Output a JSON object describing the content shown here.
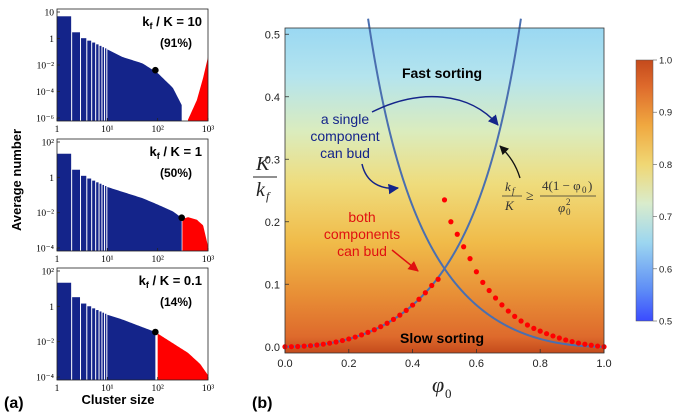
{
  "labels": {
    "panel_a": "(a)",
    "panel_b": "(b)",
    "ylabel_a": "Average number",
    "xlabel_a": "Cluster size"
  },
  "chart_data": [
    {
      "type": "bar",
      "panel": "(a) top",
      "annotation_ratio": "k",
      "annotation_sub": "f",
      "annotation_rest": " / K = 10",
      "annotation_pct": "(91%)",
      "xscale": "log",
      "yscale": "log",
      "xlim": [
        1,
        1000
      ],
      "ylim": [
        1e-06,
        10
      ],
      "yticks": [
        "10",
        "1",
        "10⁻²",
        "10⁻⁴",
        "10⁻⁶"
      ],
      "xticks": [
        "1",
        "10¹",
        "10²",
        "10³"
      ],
      "series": [
        {
          "name": "",
          "color": "#14248a",
          "points": [
            [
              1,
              3.5
            ],
            [
              2,
              0.35
            ],
            [
              3,
              0.15
            ],
            [
              5,
              0.08
            ],
            [
              10,
              0.03
            ],
            [
              20,
              0.01
            ],
            [
              50,
              0.004
            ],
            [
              100,
              0.001
            ],
            [
              200,
              0.00012
            ],
            [
              300,
              1e-05
            ]
          ]
        },
        {
          "name": "",
          "color": "#ff0000",
          "points": [
            [
              400,
              1.2e-06
            ],
            [
              600,
              2e-05
            ],
            [
              800,
              0.0005
            ],
            [
              1000,
              0.01
            ]
          ]
        }
      ],
      "marker": {
        "x": 90,
        "y": 0.0015
      }
    },
    {
      "type": "bar",
      "panel": "(a) middle",
      "annotation_ratio": "k",
      "annotation_sub": "f",
      "annotation_rest": " / K = 1",
      "annotation_pct": "(50%)",
      "xscale": "log",
      "yscale": "log",
      "xlim": [
        1,
        1000
      ],
      "ylim": [
        1e-05,
        100
      ],
      "yticks": [
        "10²",
        "1",
        "10⁻²",
        "10⁻⁴"
      ],
      "xticks": [
        "1",
        "10¹",
        "10²",
        "10³"
      ],
      "series": [
        {
          "name": "",
          "color": "#14248a",
          "points": [
            [
              1,
              12
            ],
            [
              2,
              1.2
            ],
            [
              3,
              0.5
            ],
            [
              5,
              0.25
            ],
            [
              10,
              0.1
            ],
            [
              20,
              0.05
            ],
            [
              50,
              0.02
            ],
            [
              100,
              0.008
            ],
            [
              200,
              0.003
            ],
            [
              300,
              0.0012
            ]
          ]
        },
        {
          "name": "",
          "color": "#ff0000",
          "points": [
            [
              310,
              0.001
            ],
            [
              400,
              0.0013
            ],
            [
              600,
              0.0009
            ],
            [
              800,
              0.0004
            ],
            [
              1000,
              2e-05
            ]
          ]
        }
      ],
      "marker": {
        "x": 300,
        "y": 0.0012
      }
    },
    {
      "type": "bar",
      "panel": "(a) bottom",
      "annotation_ratio": "k",
      "annotation_sub": "f",
      "annotation_rest": " / K = 0.1",
      "annotation_pct": "(14%)",
      "xscale": "log",
      "yscale": "log",
      "xlim": [
        1,
        1000
      ],
      "ylim": [
        1e-05,
        100
      ],
      "yticks": [
        "10²",
        "1",
        "10⁻²",
        "10⁻⁴"
      ],
      "xticks": [
        "1",
        "10¹",
        "10²",
        "10³"
      ],
      "series": [
        {
          "name": "",
          "color": "#14248a",
          "points": [
            [
              1,
              12
            ],
            [
              2,
              1.5
            ],
            [
              3,
              0.6
            ],
            [
              5,
              0.3
            ],
            [
              10,
              0.12
            ],
            [
              20,
              0.06
            ],
            [
              50,
              0.02
            ],
            [
              90,
              0.01
            ]
          ]
        },
        {
          "name": "",
          "color": "#ff0000",
          "points": [
            [
              100,
              0.008
            ],
            [
              200,
              0.002
            ],
            [
              400,
              0.0005
            ],
            [
              700,
              0.0001
            ],
            [
              1000,
              2e-05
            ]
          ]
        }
      ],
      "marker": {
        "x": 90,
        "y": 0.01
      }
    },
    {
      "type": "line",
      "panel": "(b)",
      "xlabel": "φ",
      "xlabel_sub": "0",
      "ylabel_num": "K",
      "ylabel_den": "k",
      "ylabel_den_sub": "f",
      "xlim": [
        0.0,
        1.0
      ],
      "ylim": [
        -0.01,
        0.51
      ],
      "xticks": [
        "0.0",
        "0.2",
        "0.4",
        "0.6",
        "0.8",
        "1.0"
      ],
      "yticks": [
        "0.0",
        "0.1",
        "0.2",
        "0.3",
        "0.4",
        "0.5"
      ],
      "region_labels": {
        "fast": "Fast sorting",
        "slow": "Slow sorting",
        "single_line1": "a single",
        "single_line2": "component",
        "single_line3": "can bud",
        "both_line1": "both",
        "both_line2": "components",
        "both_line3": "can bud"
      },
      "inequality": {
        "lhs_num": "k",
        "lhs_num_sub": "f",
        "lhs_den": "K",
        "op": "≥",
        "rhs_num": "4(1 − φ",
        "rhs_num_sub": "0",
        "rhs_num_end": ")",
        "rhs_den": "φ",
        "rhs_den_sub": "0",
        "rhs_den_sup": "2"
      },
      "curves": [
        {
          "name": "",
          "color": "#4a6fb0",
          "formula": "phi^2/(4(1-phi))"
        },
        {
          "name": "",
          "color": "#4a6fb0",
          "formula": "(1-phi)^2/(4 phi)"
        }
      ],
      "dots": {
        "color": "#ff0000",
        "x": [
          0.0,
          0.02,
          0.04,
          0.06,
          0.08,
          0.1,
          0.12,
          0.14,
          0.16,
          0.18,
          0.2,
          0.22,
          0.24,
          0.26,
          0.28,
          0.3,
          0.32,
          0.34,
          0.36,
          0.38,
          0.4,
          0.42,
          0.44,
          0.46,
          0.48,
          0.5,
          0.52,
          0.54,
          0.56,
          0.58,
          0.6,
          0.62,
          0.64,
          0.66,
          0.68,
          0.7,
          0.72,
          0.74,
          0.76,
          0.78,
          0.8,
          0.82,
          0.84,
          0.86,
          0.88,
          0.9,
          0.92,
          0.94,
          0.96,
          0.98,
          1.0
        ],
        "y": [
          0.0,
          0.0001,
          0.0004,
          0.001,
          0.0017,
          0.0028,
          0.0041,
          0.0057,
          0.0076,
          0.0099,
          0.0125,
          0.0155,
          0.019,
          0.023,
          0.0272,
          0.0321,
          0.0376,
          0.0438,
          0.0506,
          0.0582,
          0.0667,
          0.076,
          0.0864,
          0.098,
          0.108,
          0.235,
          0.2,
          0.18,
          0.16,
          0.141,
          0.12,
          0.103,
          0.09,
          0.078,
          0.067,
          0.0571,
          0.0486,
          0.0412,
          0.0348,
          0.0294,
          0.025,
          0.0209,
          0.0173,
          0.014,
          0.0109,
          0.0083,
          0.0059,
          0.004,
          0.0024,
          0.0011,
          0.0
        ]
      },
      "colorbar": {
        "ticks": [
          "1.0",
          "0.9",
          "0.8",
          "0.7",
          "0.6",
          "0.5"
        ],
        "range": [
          0.5,
          1.0
        ],
        "stops": [
          "#3a4bff",
          "#9cd6f0",
          "#e8eec0",
          "#f2c24a",
          "#de6a2c",
          "#b54520"
        ]
      }
    }
  ]
}
